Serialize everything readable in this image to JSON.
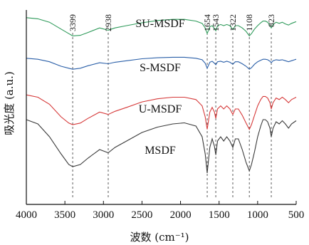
{
  "chart_data": {
    "type": "line",
    "xlabel": "波数 (cm⁻¹)",
    "ylabel": "吸光度 (a.u.)",
    "xlim": [
      4000,
      500
    ],
    "x_reversed": true,
    "x_ticks": [
      "4000",
      "3500",
      "3000",
      "2500",
      "2000",
      "1500",
      "1000",
      "500"
    ],
    "x_tick_values": [
      4000,
      3500,
      3000,
      2500,
      2000,
      1500,
      1000,
      500
    ],
    "y_ticks": false,
    "grid": false,
    "reference_lines": [
      {
        "x": 3399,
        "label": "3399"
      },
      {
        "x": 2938,
        "label": "2938"
      },
      {
        "x": 1654,
        "label": "1654"
      },
      {
        "x": 1543,
        "label": "1543"
      },
      {
        "x": 1322,
        "label": "1322"
      },
      {
        "x": 1108,
        "label": "1108"
      },
      {
        "x": 823,
        "label": "823"
      }
    ],
    "series": [
      {
        "name": "SU-MSDF",
        "color": "#2e9a5a",
        "points": [
          [
            4000,
            0.94
          ],
          [
            3850,
            0.92
          ],
          [
            3700,
            0.86
          ],
          [
            3550,
            0.74
          ],
          [
            3450,
            0.66
          ],
          [
            3399,
            0.62
          ],
          [
            3300,
            0.63
          ],
          [
            3200,
            0.68
          ],
          [
            3050,
            0.76
          ],
          [
            2938,
            0.72
          ],
          [
            2850,
            0.76
          ],
          [
            2700,
            0.8
          ],
          [
            2500,
            0.85
          ],
          [
            2300,
            0.89
          ],
          [
            2100,
            0.91
          ],
          [
            1950,
            0.91
          ],
          [
            1800,
            0.88
          ],
          [
            1720,
            0.84
          ],
          [
            1680,
            0.76
          ],
          [
            1654,
            0.66
          ],
          [
            1620,
            0.78
          ],
          [
            1590,
            0.8
          ],
          [
            1560,
            0.75
          ],
          [
            1543,
            0.71
          ],
          [
            1520,
            0.8
          ],
          [
            1480,
            0.82
          ],
          [
            1440,
            0.8
          ],
          [
            1400,
            0.82
          ],
          [
            1360,
            0.8
          ],
          [
            1322,
            0.73
          ],
          [
            1290,
            0.8
          ],
          [
            1250,
            0.8
          ],
          [
            1200,
            0.76
          ],
          [
            1150,
            0.7
          ],
          [
            1108,
            0.62
          ],
          [
            1080,
            0.66
          ],
          [
            1040,
            0.74
          ],
          [
            1000,
            0.8
          ],
          [
            960,
            0.85
          ],
          [
            930,
            0.88
          ],
          [
            900,
            0.88
          ],
          [
            870,
            0.86
          ],
          [
            840,
            0.8
          ],
          [
            823,
            0.76
          ],
          [
            800,
            0.82
          ],
          [
            760,
            0.86
          ],
          [
            720,
            0.84
          ],
          [
            680,
            0.86
          ],
          [
            640,
            0.83
          ],
          [
            600,
            0.81
          ],
          [
            560,
            0.84
          ],
          [
            520,
            0.86
          ],
          [
            500,
            0.87
          ]
        ]
      },
      {
        "name": "S-MSDF",
        "color": "#2a5fa8",
        "points": [
          [
            4000,
            0.86
          ],
          [
            3850,
            0.84
          ],
          [
            3700,
            0.79
          ],
          [
            3550,
            0.7
          ],
          [
            3450,
            0.66
          ],
          [
            3399,
            0.64
          ],
          [
            3300,
            0.66
          ],
          [
            3200,
            0.71
          ],
          [
            3050,
            0.77
          ],
          [
            2938,
            0.75
          ],
          [
            2850,
            0.78
          ],
          [
            2700,
            0.81
          ],
          [
            2500,
            0.85
          ],
          [
            2300,
            0.87
          ],
          [
            2100,
            0.88
          ],
          [
            1950,
            0.88
          ],
          [
            1800,
            0.86
          ],
          [
            1720,
            0.83
          ],
          [
            1680,
            0.76
          ],
          [
            1654,
            0.66
          ],
          [
            1620,
            0.78
          ],
          [
            1590,
            0.8
          ],
          [
            1560,
            0.76
          ],
          [
            1543,
            0.73
          ],
          [
            1520,
            0.79
          ],
          [
            1480,
            0.8
          ],
          [
            1440,
            0.78
          ],
          [
            1400,
            0.8
          ],
          [
            1360,
            0.78
          ],
          [
            1322,
            0.74
          ],
          [
            1290,
            0.79
          ],
          [
            1250,
            0.79
          ],
          [
            1200,
            0.75
          ],
          [
            1150,
            0.7
          ],
          [
            1108,
            0.64
          ],
          [
            1080,
            0.67
          ],
          [
            1040,
            0.74
          ],
          [
            1000,
            0.79
          ],
          [
            960,
            0.82
          ],
          [
            930,
            0.84
          ],
          [
            900,
            0.84
          ],
          [
            870,
            0.83
          ],
          [
            840,
            0.8
          ],
          [
            823,
            0.77
          ],
          [
            800,
            0.81
          ],
          [
            760,
            0.83
          ],
          [
            720,
            0.82
          ],
          [
            680,
            0.83
          ],
          [
            640,
            0.81
          ],
          [
            600,
            0.79
          ],
          [
            560,
            0.81
          ],
          [
            520,
            0.83
          ],
          [
            500,
            0.84
          ]
        ]
      },
      {
        "name": "U-MSDF",
        "color": "#d63a3a",
        "points": [
          [
            4000,
            0.88
          ],
          [
            3850,
            0.85
          ],
          [
            3700,
            0.76
          ],
          [
            3550,
            0.6
          ],
          [
            3450,
            0.52
          ],
          [
            3399,
            0.5
          ],
          [
            3300,
            0.52
          ],
          [
            3200,
            0.58
          ],
          [
            3050,
            0.66
          ],
          [
            2938,
            0.63
          ],
          [
            2850,
            0.67
          ],
          [
            2700,
            0.72
          ],
          [
            2500,
            0.79
          ],
          [
            2300,
            0.83
          ],
          [
            2100,
            0.85
          ],
          [
            1950,
            0.85
          ],
          [
            1800,
            0.82
          ],
          [
            1720,
            0.74
          ],
          [
            1680,
            0.6
          ],
          [
            1654,
            0.44
          ],
          [
            1620,
            0.66
          ],
          [
            1590,
            0.72
          ],
          [
            1560,
            0.66
          ],
          [
            1543,
            0.58
          ],
          [
            1520,
            0.7
          ],
          [
            1480,
            0.74
          ],
          [
            1440,
            0.7
          ],
          [
            1400,
            0.74
          ],
          [
            1360,
            0.7
          ],
          [
            1322,
            0.63
          ],
          [
            1290,
            0.7
          ],
          [
            1250,
            0.7
          ],
          [
            1200,
            0.62
          ],
          [
            1150,
            0.52
          ],
          [
            1108,
            0.44
          ],
          [
            1080,
            0.5
          ],
          [
            1040,
            0.62
          ],
          [
            1000,
            0.74
          ],
          [
            960,
            0.82
          ],
          [
            930,
            0.86
          ],
          [
            900,
            0.86
          ],
          [
            870,
            0.84
          ],
          [
            840,
            0.78
          ],
          [
            823,
            0.7
          ],
          [
            800,
            0.78
          ],
          [
            760,
            0.84
          ],
          [
            720,
            0.82
          ],
          [
            680,
            0.85
          ],
          [
            640,
            0.82
          ],
          [
            600,
            0.78
          ],
          [
            560,
            0.82
          ],
          [
            520,
            0.84
          ],
          [
            500,
            0.85
          ]
        ]
      },
      {
        "name": "MSDF",
        "color": "#3a3a3a",
        "points": [
          [
            4000,
            0.88
          ],
          [
            3850,
            0.84
          ],
          [
            3700,
            0.72
          ],
          [
            3550,
            0.56
          ],
          [
            3450,
            0.46
          ],
          [
            3399,
            0.44
          ],
          [
            3300,
            0.46
          ],
          [
            3200,
            0.52
          ],
          [
            3050,
            0.6
          ],
          [
            2938,
            0.57
          ],
          [
            2850,
            0.62
          ],
          [
            2700,
            0.68
          ],
          [
            2500,
            0.76
          ],
          [
            2300,
            0.81
          ],
          [
            2100,
            0.84
          ],
          [
            1950,
            0.85
          ],
          [
            1800,
            0.82
          ],
          [
            1720,
            0.72
          ],
          [
            1680,
            0.56
          ],
          [
            1654,
            0.38
          ],
          [
            1620,
            0.62
          ],
          [
            1590,
            0.7
          ],
          [
            1560,
            0.63
          ],
          [
            1543,
            0.55
          ],
          [
            1520,
            0.68
          ],
          [
            1480,
            0.72
          ],
          [
            1440,
            0.68
          ],
          [
            1400,
            0.72
          ],
          [
            1360,
            0.68
          ],
          [
            1322,
            0.62
          ],
          [
            1290,
            0.7
          ],
          [
            1250,
            0.7
          ],
          [
            1200,
            0.6
          ],
          [
            1150,
            0.48
          ],
          [
            1108,
            0.4
          ],
          [
            1080,
            0.46
          ],
          [
            1040,
            0.58
          ],
          [
            1000,
            0.72
          ],
          [
            960,
            0.82
          ],
          [
            930,
            0.88
          ],
          [
            900,
            0.88
          ],
          [
            870,
            0.86
          ],
          [
            840,
            0.8
          ],
          [
            823,
            0.72
          ],
          [
            800,
            0.8
          ],
          [
            760,
            0.86
          ],
          [
            720,
            0.84
          ],
          [
            680,
            0.87
          ],
          [
            640,
            0.84
          ],
          [
            600,
            0.8
          ],
          [
            560,
            0.84
          ],
          [
            520,
            0.86
          ],
          [
            500,
            0.87
          ]
        ]
      }
    ]
  }
}
